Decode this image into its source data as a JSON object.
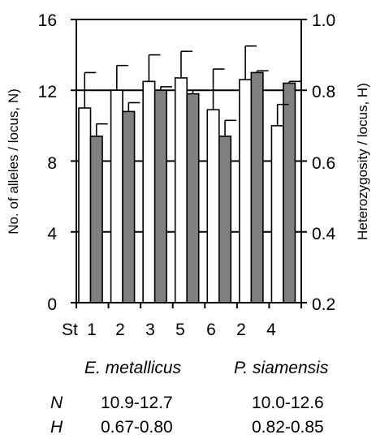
{
  "chart_data": {
    "type": "bar",
    "categories": [
      "1",
      "2",
      "3",
      "5",
      "6",
      "2",
      "4"
    ],
    "category_prefix": "St",
    "series": [
      {
        "values": [
          11.0,
          12.0,
          12.5,
          12.7,
          10.9,
          12.6,
          10.0
        ],
        "errors": [
          2.0,
          1.4,
          1.5,
          1.5,
          2.3,
          1.9,
          1.2
        ],
        "axis": "left",
        "color": "#ffffff"
      },
      {
        "values": [
          0.67,
          0.74,
          0.8,
          0.79,
          0.67,
          0.85,
          0.82
        ],
        "errors": [
          0.035,
          0.025,
          0.01,
          0.01,
          0.045,
          0.005,
          0.005
        ],
        "axis": "right",
        "color": "#808080"
      }
    ],
    "ylabel": "No. of alleles / locus, N)",
    "ylim": [
      0,
      16
    ],
    "yticks": [
      "0",
      "4",
      "8",
      "12",
      "16"
    ],
    "y2label": "Heterozygosity / locus, H)",
    "y2lim": [
      0.2,
      1.0
    ],
    "y2ticks": [
      "0.2",
      "0.4",
      "0.6",
      "0.8",
      "1.0"
    ],
    "grid": "horizontal"
  },
  "caption": {
    "species": [
      "E. metallicus",
      "P. siamensis"
    ],
    "rows": [
      {
        "label": "N",
        "values": [
          "10.9-12.7",
          "10.0-12.6"
        ]
      },
      {
        "label": "H",
        "values": [
          "0.67-0.80",
          "0.82-0.85"
        ]
      }
    ]
  }
}
